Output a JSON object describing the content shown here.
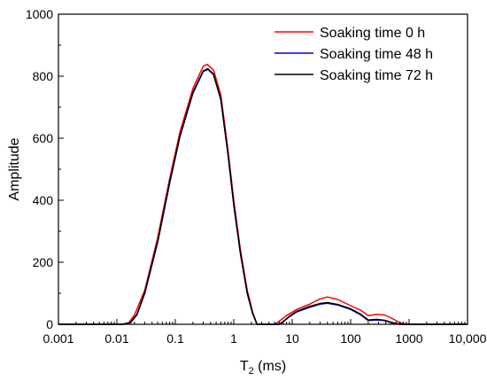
{
  "chart_data": {
    "type": "line",
    "xlabel": "T",
    "xlabel_subscript": "2",
    "xlabel_unit": " (ms)",
    "ylabel": "Amplitude",
    "xscale": "log",
    "xlim": [
      0.001,
      10000
    ],
    "ylim": [
      0,
      1000
    ],
    "x_tick_values": [
      0.001,
      0.01,
      0.1,
      1,
      10,
      100,
      1000,
      10000
    ],
    "x_tick_labels": [
      "0.001",
      "0.01",
      "0.1",
      "1",
      "10",
      "100",
      "1000",
      "10,000"
    ],
    "y_tick_values": [
      0,
      200,
      400,
      600,
      800,
      1000
    ],
    "y_tick_labels": [
      "0",
      "200",
      "400",
      "600",
      "800",
      "1000"
    ],
    "grid": false,
    "legend_position": "top-right",
    "series": [
      {
        "name": "Soaking time  0 h",
        "color": "#ff0000",
        "points": [
          [
            0.001,
            0
          ],
          [
            0.012,
            0
          ],
          [
            0.016,
            5
          ],
          [
            0.02,
            30
          ],
          [
            0.03,
            110
          ],
          [
            0.05,
            280
          ],
          [
            0.08,
            470
          ],
          [
            0.12,
            620
          ],
          [
            0.2,
            760
          ],
          [
            0.3,
            832
          ],
          [
            0.35,
            838
          ],
          [
            0.45,
            820
          ],
          [
            0.6,
            740
          ],
          [
            0.8,
            560
          ],
          [
            1,
            400
          ],
          [
            1.3,
            240
          ],
          [
            1.7,
            110
          ],
          [
            2.1,
            40
          ],
          [
            2.5,
            0
          ],
          [
            5,
            0
          ],
          [
            6,
            10
          ],
          [
            8,
            28
          ],
          [
            12,
            48
          ],
          [
            20,
            65
          ],
          [
            30,
            82
          ],
          [
            40,
            88
          ],
          [
            60,
            80
          ],
          [
            100,
            60
          ],
          [
            150,
            45
          ],
          [
            200,
            28
          ],
          [
            280,
            32
          ],
          [
            380,
            30
          ],
          [
            500,
            20
          ],
          [
            700,
            5
          ],
          [
            900,
            0
          ],
          [
            10000,
            0
          ]
        ]
      },
      {
        "name": "Soaking time 48 h",
        "color": "#0000cc",
        "points": [
          [
            0.001,
            0
          ],
          [
            0.013,
            0
          ],
          [
            0.017,
            5
          ],
          [
            0.022,
            30
          ],
          [
            0.03,
            100
          ],
          [
            0.05,
            265
          ],
          [
            0.08,
            455
          ],
          [
            0.12,
            605
          ],
          [
            0.2,
            745
          ],
          [
            0.3,
            815
          ],
          [
            0.36,
            822
          ],
          [
            0.45,
            805
          ],
          [
            0.6,
            725
          ],
          [
            0.8,
            545
          ],
          [
            1,
            385
          ],
          [
            1.3,
            228
          ],
          [
            1.7,
            100
          ],
          [
            2.1,
            35
          ],
          [
            2.5,
            0
          ],
          [
            6,
            0
          ],
          [
            7,
            8
          ],
          [
            9,
            25
          ],
          [
            12,
            40
          ],
          [
            20,
            55
          ],
          [
            30,
            65
          ],
          [
            40,
            68
          ],
          [
            60,
            62
          ],
          [
            100,
            48
          ],
          [
            150,
            30
          ],
          [
            200,
            12
          ],
          [
            280,
            14
          ],
          [
            380,
            12
          ],
          [
            500,
            5
          ],
          [
            700,
            0
          ],
          [
            10000,
            0
          ]
        ]
      },
      {
        "name": "Soaking time 72 h",
        "color": "#000000",
        "points": [
          [
            0.001,
            0
          ],
          [
            0.013,
            0
          ],
          [
            0.017,
            5
          ],
          [
            0.022,
            32
          ],
          [
            0.03,
            102
          ],
          [
            0.05,
            268
          ],
          [
            0.08,
            458
          ],
          [
            0.12,
            608
          ],
          [
            0.2,
            748
          ],
          [
            0.3,
            817
          ],
          [
            0.36,
            824
          ],
          [
            0.45,
            807
          ],
          [
            0.6,
            727
          ],
          [
            0.8,
            547
          ],
          [
            1,
            387
          ],
          [
            1.3,
            230
          ],
          [
            1.7,
            102
          ],
          [
            2.1,
            36
          ],
          [
            2.5,
            0
          ],
          [
            6,
            0
          ],
          [
            7,
            9
          ],
          [
            9,
            26
          ],
          [
            12,
            42
          ],
          [
            20,
            58
          ],
          [
            30,
            67
          ],
          [
            40,
            70
          ],
          [
            60,
            64
          ],
          [
            100,
            50
          ],
          [
            150,
            32
          ],
          [
            200,
            14
          ],
          [
            280,
            16
          ],
          [
            380,
            13
          ],
          [
            500,
            6
          ],
          [
            700,
            0
          ],
          [
            10000,
            0
          ]
        ]
      }
    ]
  }
}
